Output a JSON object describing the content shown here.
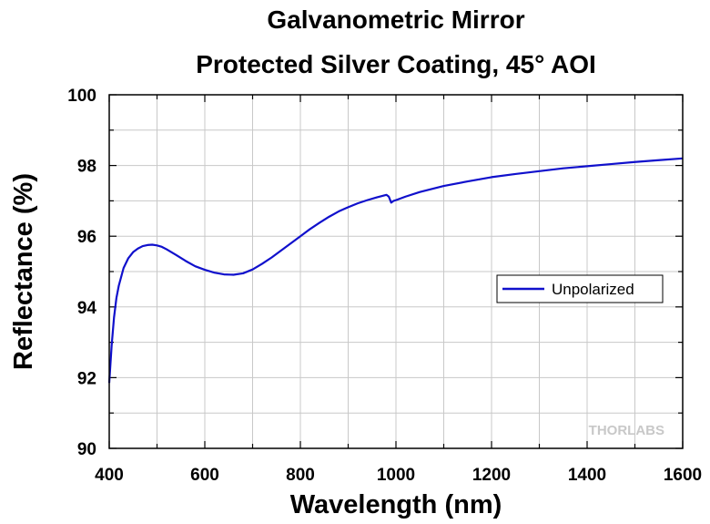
{
  "chart_data": {
    "type": "line",
    "title": [
      "Galvanometric Mirror",
      "Protected Silver Coating, 45° AOI"
    ],
    "xlabel": "Wavelength (nm)",
    "ylabel": "Reflectance (%)",
    "xlim": [
      400,
      1600
    ],
    "ylim": [
      90,
      100
    ],
    "xticks": [
      400,
      600,
      800,
      1000,
      1200,
      1400,
      1600
    ],
    "yticks": [
      90,
      92,
      94,
      96,
      98,
      100
    ],
    "grid": true,
    "legend_position": "right-middle",
    "series": [
      {
        "name": "Unpolarized",
        "color": "#1010cc",
        "x": [
          400,
          405,
          410,
          415,
          420,
          430,
          440,
          450,
          460,
          470,
          480,
          490,
          500,
          510,
          520,
          540,
          560,
          580,
          600,
          620,
          640,
          660,
          680,
          700,
          720,
          740,
          760,
          780,
          800,
          820,
          840,
          860,
          880,
          900,
          920,
          940,
          960,
          980,
          985,
          990,
          995,
          1000,
          1020,
          1050,
          1100,
          1150,
          1200,
          1250,
          1300,
          1350,
          1400,
          1450,
          1500,
          1550,
          1600
        ],
        "values": [
          91.85,
          92.9,
          93.7,
          94.25,
          94.6,
          95.1,
          95.38,
          95.55,
          95.65,
          95.72,
          95.75,
          95.76,
          95.74,
          95.7,
          95.63,
          95.47,
          95.3,
          95.15,
          95.05,
          94.97,
          94.92,
          94.91,
          94.95,
          95.06,
          95.22,
          95.4,
          95.6,
          95.8,
          96.0,
          96.2,
          96.38,
          96.55,
          96.7,
          96.82,
          96.93,
          97.02,
          97.1,
          97.17,
          97.12,
          96.95,
          97.0,
          97.02,
          97.12,
          97.25,
          97.42,
          97.55,
          97.67,
          97.76,
          97.84,
          97.92,
          97.98,
          98.04,
          98.1,
          98.15,
          98.2
        ]
      }
    ],
    "watermark": "THORLABS"
  }
}
